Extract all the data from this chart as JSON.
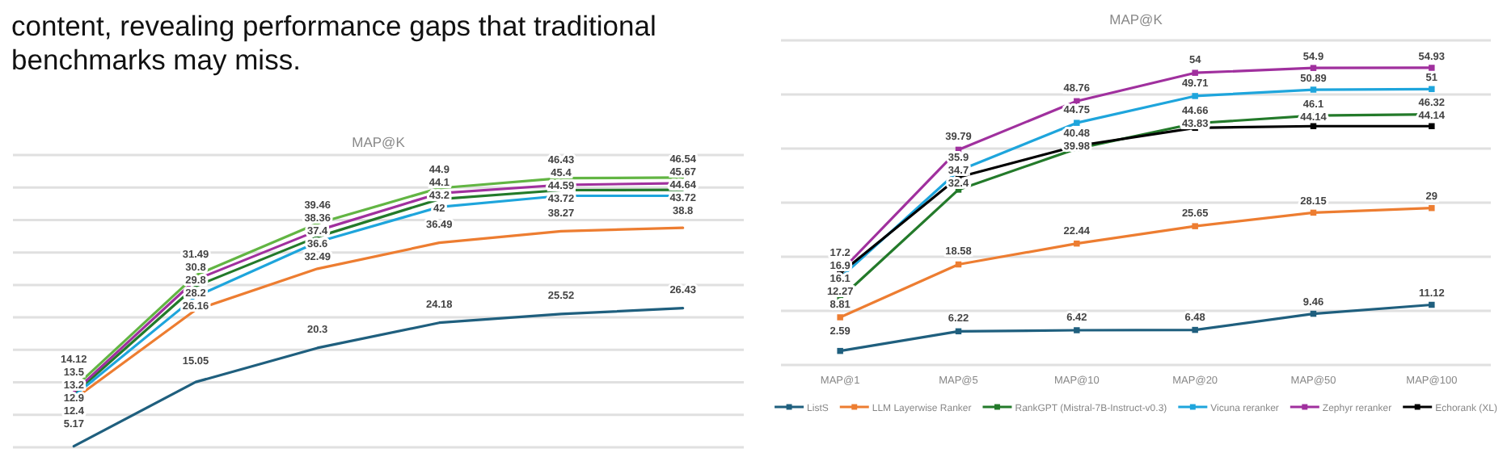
{
  "chart_data": [
    {
      "type": "line",
      "title": "MAP@K",
      "annotations": [
        "content, revealing performance gaps that traditional benchmarks may miss."
      ],
      "categories": [
        null,
        null,
        null,
        null,
        null,
        null
      ],
      "ylim": [
        5,
        50
      ],
      "yticks": [
        {
          "value": 5,
          "label": null
        },
        {
          "value": 10,
          "label": null
        },
        {
          "value": 15,
          "label": null
        },
        {
          "value": 20,
          "label": null
        },
        {
          "value": 25,
          "label": null
        },
        {
          "value": 30,
          "label": null
        },
        {
          "value": 35,
          "label": null
        },
        {
          "value": 40,
          "label": null
        },
        {
          "value": 45,
          "label": null
        },
        {
          "value": 50,
          "label": null
        }
      ],
      "grid": "y",
      "legend": false,
      "data_labels": true,
      "tick_labels": false,
      "series": [
        {
          "color": "#1f5f7e",
          "values": [
            5.17,
            15.05,
            20.3,
            24.18,
            25.52,
            26.43
          ]
        },
        {
          "color": "#ed7d31",
          "values": [
            12.4,
            26.16,
            32.49,
            36.49,
            38.27,
            38.8
          ]
        },
        {
          "color": "#237a2a",
          "values": [
            13.2,
            29.8,
            37.4,
            43.2,
            44.59,
            44.64
          ]
        },
        {
          "color": "#1ea5dc",
          "values": [
            12.9,
            28.2,
            36.6,
            42,
            43.72,
            43.72
          ]
        },
        {
          "color": "#a0309e",
          "values": [
            13.5,
            30.8,
            38.36,
            44.1,
            45.4,
            45.67
          ]
        },
        {
          "color": "#62b543",
          "values": [
            14.12,
            31.49,
            39.46,
            44.9,
            46.43,
            46.54
          ]
        }
      ]
    },
    {
      "type": "line",
      "title": "MAP@K",
      "categories": [
        "MAP@1",
        "MAP@5",
        "MAP@10",
        "MAP@20",
        "MAP@50",
        "MAP@100"
      ],
      "ylim": [
        0,
        60
      ],
      "yticks": [
        {
          "value": 0,
          "label": null
        },
        {
          "value": 10,
          "label": null
        },
        {
          "value": 20,
          "label": null
        },
        {
          "value": 30,
          "label": null
        },
        {
          "value": 40,
          "label": null
        },
        {
          "value": 50,
          "label": null
        },
        {
          "value": 60,
          "label": null
        }
      ],
      "grid": "y",
      "legend": "bottom",
      "marker": "square",
      "data_labels": true,
      "tick_labels": "x",
      "series": [
        {
          "name": "ListS",
          "color": "#1f5f7e",
          "values": [
            2.59,
            6.22,
            6.42,
            6.48,
            9.46,
            11.12
          ]
        },
        {
          "name": "LLM Layerwise Ranker",
          "color": "#ed7d31",
          "values": [
            8.81,
            18.58,
            22.44,
            25.65,
            28.15,
            29
          ]
        },
        {
          "name": "RankGPT (Mistral-7B-Instruct-v0.3)",
          "color": "#237a2a",
          "values": [
            12.27,
            32.4,
            39.98,
            44.66,
            46.1,
            46.32
          ]
        },
        {
          "name": "Vicuna reranker",
          "color": "#1ea5dc",
          "values": [
            16.1,
            35.9,
            44.75,
            49.71,
            50.89,
            51
          ]
        },
        {
          "name": "Zephyr reranker",
          "color": "#a0309e",
          "values": [
            17.2,
            39.79,
            48.76,
            54,
            54.9,
            54.93
          ]
        },
        {
          "name": "Echorank (XL)",
          "color": "#000000",
          "values": [
            16.9,
            34.7,
            40.48,
            43.83,
            44.14,
            44.14
          ]
        }
      ]
    }
  ]
}
